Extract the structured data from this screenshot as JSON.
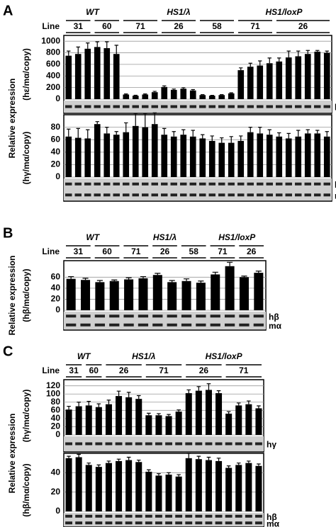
{
  "panels": [
    "A",
    "B",
    "C"
  ],
  "chart_data": [
    {
      "type": "bar",
      "line_label": "Line",
      "ylabel": "Relative expression",
      "yunit": "(hε/mα/copy)",
      "gel_labels": [
        "hε"
      ],
      "genotypes": [
        "WT",
        "WT",
        "WT",
        "WT",
        "WT",
        "WT",
        "HS1/λ",
        "HS1/λ",
        "HS1/λ",
        "HS1/λ",
        "HS1/λ",
        "HS1/λ",
        "HS1/λ",
        "HS1/λ",
        "HS1/λ",
        "HS1/λ",
        "HS1/λ",
        "HS1/λ",
        "HS1/loxP",
        "HS1/loxP",
        "HS1/loxP",
        "HS1/loxP",
        "HS1/loxP",
        "HS1/loxP",
        "HS1/loxP",
        "HS1/loxP",
        "HS1/loxP",
        "HS1/loxP"
      ],
      "categories": [
        "31",
        "31",
        "31",
        "60",
        "60",
        "60",
        "71",
        "71",
        "71",
        "71",
        "26",
        "26",
        "26",
        "26",
        "58",
        "58",
        "58",
        "58",
        "71",
        "71",
        "71",
        "71",
        "26",
        "26",
        "26",
        "26",
        "26",
        "26"
      ],
      "values": [
        750,
        780,
        870,
        900,
        880,
        780,
        80,
        60,
        80,
        120,
        210,
        160,
        180,
        150,
        70,
        60,
        70,
        100,
        500,
        560,
        580,
        620,
        650,
        720,
        740,
        780,
        820,
        800
      ],
      "errors": [
        80,
        120,
        100,
        90,
        110,
        150,
        10,
        8,
        10,
        15,
        20,
        15,
        18,
        15,
        8,
        6,
        8,
        10,
        40,
        60,
        80,
        90,
        60,
        110,
        90,
        60,
        20,
        30
      ],
      "ylim": [
        0,
        1100
      ],
      "yticks": [
        0,
        200,
        400,
        600,
        800,
        1000
      ],
      "grid": true,
      "color": "#000000"
    },
    {
      "type": "bar",
      "yunit": "(hγ/mα/copy)",
      "gel_labels": [
        "hγ",
        "mα"
      ],
      "values": [
        65,
        63,
        62,
        85,
        70,
        68,
        72,
        82,
        80,
        85,
        68,
        65,
        68,
        65,
        62,
        58,
        55,
        55,
        58,
        72,
        70,
        68,
        65,
        62,
        65,
        70,
        70,
        65
      ],
      "errors": [
        12,
        15,
        14,
        4,
        10,
        5,
        15,
        20,
        22,
        18,
        10,
        8,
        8,
        10,
        6,
        8,
        8,
        10,
        8,
        8,
        10,
        8,
        6,
        8,
        10,
        6,
        5,
        8
      ],
      "ylim": [
        0,
        100
      ],
      "yticks": [
        0,
        20,
        40,
        60,
        80
      ],
      "grid": true,
      "color": "#000000"
    },
    {
      "type": "bar",
      "line_label": "Line",
      "ylabel": "Relative expression",
      "yunit": "(hβ/mα/copy)",
      "gel_labels": [
        "hβ",
        "mα"
      ],
      "genotypes": [
        "WT",
        "WT",
        "WT",
        "WT",
        "HS1/λ",
        "HS1/λ",
        "HS1/λ",
        "HS1/λ",
        "HS1/λ",
        "HS1/λ",
        "HS1/loxP",
        "HS1/loxP",
        "HS1/loxP",
        "HS1/loxP"
      ],
      "categories": [
        "31",
        "31",
        "60",
        "60",
        "71",
        "71",
        "26",
        "26",
        "58",
        "58",
        "71",
        "71",
        "26",
        "26"
      ],
      "values": [
        57,
        55,
        51,
        53,
        56,
        58,
        64,
        51,
        53,
        50,
        65,
        80,
        60,
        68
      ],
      "errors": [
        4,
        3,
        3,
        2,
        3,
        3,
        3,
        3,
        4,
        3,
        4,
        7,
        2,
        3
      ],
      "ylim": [
        0,
        90
      ],
      "yticks": [
        0,
        20,
        40,
        60
      ],
      "grid": true,
      "color": "#000000"
    },
    {
      "type": "bar",
      "line_label": "Line",
      "ylabel": "Relative expression",
      "yunit": "(hγ/mα/copy)",
      "gel_labels": [
        "hγ"
      ],
      "genotypes": [
        "WT",
        "WT",
        "WT",
        "WT",
        "HS1/λ",
        "HS1/λ",
        "HS1/λ",
        "HS1/λ",
        "HS1/λ",
        "HS1/λ",
        "HS1/λ",
        "HS1/λ",
        "HS1/loxP",
        "HS1/loxP",
        "HS1/loxP",
        "HS1/loxP",
        "HS1/loxP",
        "HS1/loxP",
        "HS1/loxP",
        "HS1/loxP"
      ],
      "categories": [
        "31",
        "31",
        "60",
        "60",
        "26",
        "26",
        "26",
        "26",
        "71",
        "71",
        "71",
        "71",
        "26",
        "26",
        "26",
        "26",
        "71",
        "71",
        "71",
        "71"
      ],
      "values": [
        62,
        70,
        72,
        68,
        75,
        95,
        92,
        88,
        48,
        48,
        46,
        57,
        102,
        108,
        110,
        102,
        52,
        72,
        75,
        65
      ],
      "errors": [
        8,
        10,
        10,
        8,
        10,
        12,
        12,
        8,
        5,
        4,
        4,
        4,
        8,
        10,
        15,
        6,
        5,
        6,
        8,
        6
      ],
      "ylim": [
        0,
        135
      ],
      "yticks": [
        0,
        20,
        40,
        60,
        80,
        100,
        120
      ],
      "grid": true,
      "color": "#000000"
    },
    {
      "type": "bar",
      "yunit": "(hβ/mα/copy)",
      "gel_labels": [
        "hβ",
        "mα"
      ],
      "values": [
        55,
        56,
        48,
        46,
        50,
        52,
        53,
        51,
        41,
        37,
        38,
        36,
        55,
        54,
        53,
        52,
        45,
        48,
        50,
        47
      ],
      "errors": [
        2,
        3,
        2,
        2,
        2,
        2,
        3,
        2,
        2,
        2,
        2,
        2,
        5,
        3,
        3,
        3,
        2,
        2,
        2,
        2
      ],
      "ylim": [
        0,
        60
      ],
      "yticks": [
        0,
        20,
        40
      ],
      "grid": true,
      "color": "#000000"
    }
  ]
}
